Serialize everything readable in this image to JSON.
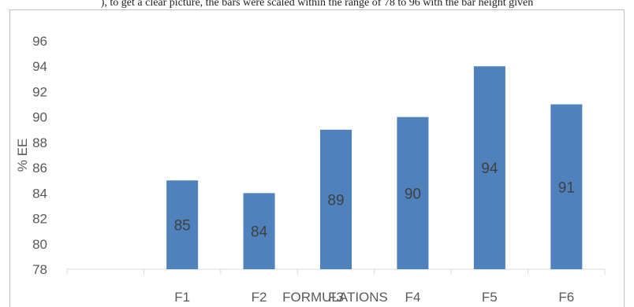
{
  "caption_fragment": "), to get a clear picture, the bars were scaled within the range of 78 to 96 with the bar height given",
  "chart_data": {
    "type": "bar",
    "categories": [
      "F1",
      "F2",
      "F3",
      "F4",
      "F5",
      "F6"
    ],
    "values": [
      85,
      84,
      89,
      90,
      94,
      91
    ],
    "xlabel": "FORMULATIONS",
    "ylabel": "% EE",
    "ylim": [
      78,
      96
    ],
    "yticks": [
      78,
      80,
      82,
      84,
      86,
      88,
      90,
      92,
      94,
      96
    ],
    "bar_color": "#4f81bd",
    "grid": false,
    "data_labels": true
  }
}
